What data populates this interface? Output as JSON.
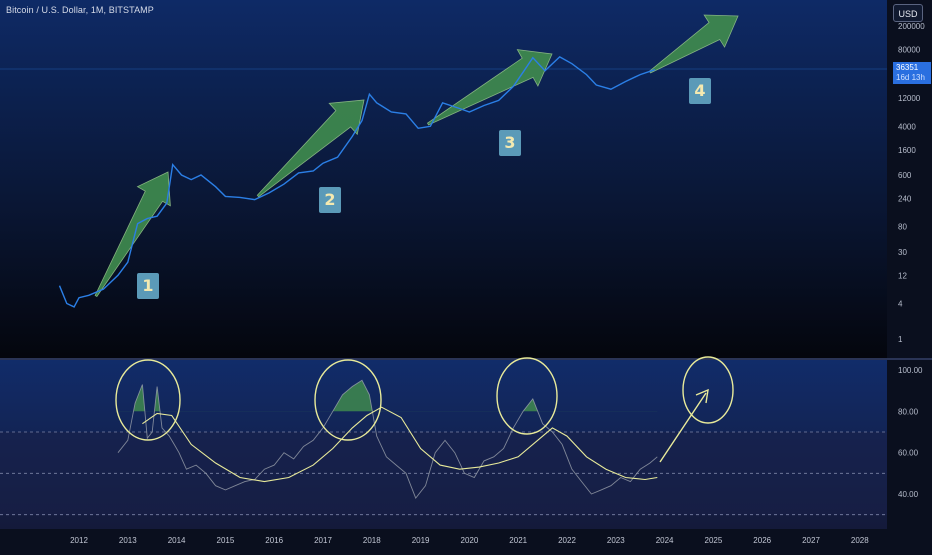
{
  "header": {
    "title": "Bitcoin / U.S. Dollar, 1M, BITSTAMP",
    "currency_button": "USD"
  },
  "price_tag": {
    "value": "36351",
    "countdown": "16d 13h"
  },
  "colors": {
    "price_line": "#2b7fe6",
    "rsi_line": "#9aa0ab",
    "ma_line": "#e8ea9a",
    "arrow_fill": "#3f8a4e",
    "label_bg": "#5b9ab8",
    "overbought_fill": "#3f8a4e"
  },
  "chart_data": [
    {
      "type": "line",
      "title": "Bitcoin / U.S. Dollar, 1M, BITSTAMP",
      "y_scale": "log",
      "y_ticks": [
        "200000",
        "80000",
        "30000",
        "12000",
        "4000",
        "1600",
        "600",
        "240",
        "80",
        "30",
        "12",
        "4",
        "1"
      ],
      "x_ticks": [
        "2012",
        "2013",
        "2014",
        "2015",
        "2016",
        "2017",
        "2018",
        "2019",
        "2020",
        "2021",
        "2022",
        "2023",
        "2024",
        "2025",
        "2026",
        "2027",
        "2028"
      ],
      "series": [
        {
          "values_x": [
            2011.6,
            2011.75,
            2011.9,
            2012.0,
            2012.2,
            2012.5,
            2012.8,
            2013.0,
            2013.2,
            2013.4,
            2013.6,
            2013.8,
            2013.92,
            2014.1,
            2014.3,
            2014.5,
            2014.8,
            2015.0,
            2015.3,
            2015.6,
            2015.9,
            2016.2,
            2016.5,
            2016.8,
            2017.0,
            2017.3,
            2017.6,
            2017.8,
            2017.95,
            2018.1,
            2018.4,
            2018.7,
            2018.95,
            2019.2,
            2019.45,
            2019.8,
            2020.0,
            2020.3,
            2020.6,
            2020.9,
            2021.1,
            2021.3,
            2021.55,
            2021.85,
            2022.1,
            2022.4,
            2022.6,
            2022.9,
            2023.2,
            2023.5,
            2023.8
          ],
          "values_y": [
            8,
            4,
            3.5,
            5,
            5.5,
            7,
            12,
            20,
            90,
            110,
            120,
            200,
            900,
            600,
            500,
            600,
            380,
            260,
            250,
            230,
            300,
            420,
            650,
            700,
            950,
            1200,
            2700,
            5000,
            14000,
            10000,
            7000,
            6500,
            3700,
            4000,
            10000,
            8000,
            7000,
            9000,
            11000,
            19000,
            33000,
            58000,
            35000,
            60000,
            46000,
            30000,
            20000,
            17000,
            23000,
            30000,
            36351
          ]
        }
      ],
      "labels": [
        "1",
        "2",
        "3",
        "4"
      ]
    },
    {
      "type": "line",
      "y_ticks": [
        "100.00",
        "80.00",
        "60.00",
        "40.00"
      ],
      "ylim": [
        24,
        104
      ],
      "hlines": [
        70,
        50,
        30
      ],
      "series": [
        {
          "values_x": [
            2012.8,
            2013.0,
            2013.15,
            2013.3,
            2013.4,
            2013.5,
            2013.6,
            2013.7,
            2013.85,
            2013.95,
            2014.05,
            2014.2,
            2014.4,
            2014.6,
            2014.8,
            2015.0,
            2015.2,
            2015.4,
            2015.6,
            2015.8,
            2016.0,
            2016.2,
            2016.4,
            2016.6,
            2016.8,
            2017.0,
            2017.2,
            2017.4,
            2017.6,
            2017.8,
            2017.95,
            2018.1,
            2018.3,
            2018.5,
            2018.7,
            2018.9,
            2019.1,
            2019.3,
            2019.5,
            2019.7,
            2019.9,
            2020.1,
            2020.3,
            2020.5,
            2020.7,
            2020.9,
            2021.1,
            2021.3,
            2021.5,
            2021.7,
            2021.9,
            2022.1,
            2022.3,
            2022.5,
            2022.7,
            2022.9,
            2023.1,
            2023.3,
            2023.5,
            2023.7,
            2023.85
          ],
          "values_y": [
            60,
            66,
            84,
            93,
            67,
            70,
            92,
            72,
            68,
            64,
            60,
            52,
            54,
            50,
            44,
            42,
            44,
            46,
            47,
            52,
            54,
            60,
            57,
            63,
            66,
            72,
            80,
            88,
            92,
            95,
            88,
            68,
            58,
            54,
            50,
            38,
            44,
            60,
            66,
            60,
            50,
            48,
            56,
            58,
            62,
            72,
            80,
            86,
            74,
            70,
            64,
            52,
            46,
            40,
            42,
            44,
            48,
            46,
            52,
            55,
            58
          ]
        },
        {
          "values_x": [
            2013.3,
            2013.6,
            2013.9,
            2014.3,
            2014.8,
            2015.3,
            2015.8,
            2016.3,
            2016.8,
            2017.2,
            2017.6,
            2017.9,
            2018.2,
            2018.6,
            2019.0,
            2019.4,
            2019.8,
            2020.2,
            2020.6,
            2021.0,
            2021.4,
            2021.7,
            2022.0,
            2022.4,
            2022.8,
            2023.2,
            2023.6,
            2023.85
          ],
          "values_y": [
            74,
            79,
            78,
            64,
            55,
            48,
            46,
            48,
            54,
            62,
            72,
            78,
            82,
            77,
            62,
            54,
            52,
            53,
            55,
            58,
            66,
            72,
            68,
            58,
            52,
            48,
            47,
            48
          ]
        }
      ],
      "circled_peaks": [
        "2013",
        "2017",
        "2021",
        "2025"
      ]
    }
  ]
}
